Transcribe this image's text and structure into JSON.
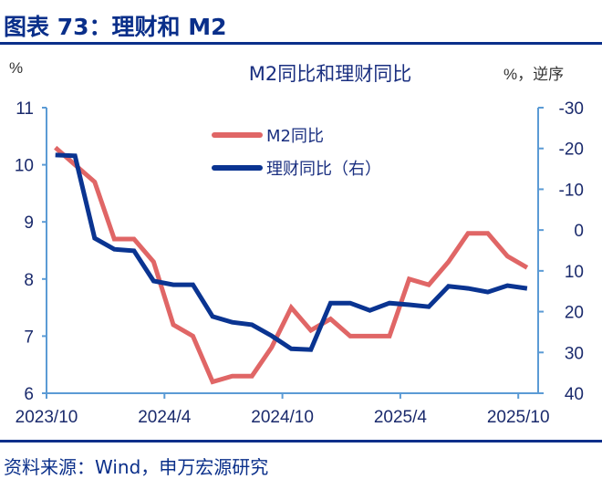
{
  "header": {
    "title": "图表 73：理财和 M2"
  },
  "footer": {
    "source": "资料来源：Wind，申万宏源研究"
  },
  "chart_data": {
    "type": "line",
    "title": "M2同比和理财同比",
    "left_unit": "%",
    "right_unit": "%，逆序",
    "x": [
      "2023/10",
      "2023/11",
      "2023/12",
      "2024/1",
      "2024/2",
      "2024/3",
      "2024/4",
      "2024/5",
      "2024/6",
      "2024/7",
      "2024/8",
      "2024/9",
      "2024/10",
      "2024/11",
      "2024/12",
      "2025/1",
      "2025/2",
      "2025/3",
      "2025/4",
      "2025/5",
      "2025/6",
      "2025/7",
      "2025/8",
      "2025/9",
      "2025/10"
    ],
    "x_tick_labels": [
      "2023/10",
      "2024/4",
      "2024/10",
      "2025/4",
      "2025/10"
    ],
    "y_left": {
      "range": [
        6,
        11
      ],
      "ticks": [
        "6",
        "7",
        "8",
        "9",
        "10",
        "11"
      ]
    },
    "y_right": {
      "range": [
        -30,
        40
      ],
      "reversed": true,
      "ticks": [
        "-30",
        "-20",
        "-10",
        "0",
        "10",
        "20",
        "30",
        "40"
      ]
    },
    "grid": false,
    "legend_position": "top-center",
    "series": [
      {
        "name": "M2同比",
        "axis": "left",
        "color": "#e06666",
        "values": [
          10.3,
          10.0,
          9.7,
          8.7,
          8.7,
          8.3,
          7.2,
          7.0,
          6.2,
          6.3,
          6.3,
          6.8,
          7.5,
          7.1,
          7.3,
          7.0,
          7.0,
          7.0,
          8.0,
          7.9,
          8.3,
          8.8,
          8.8,
          8.4,
          8.2
        ]
      },
      {
        "name": "理财同比（右）",
        "axis": "right",
        "color": "#0a3491",
        "values": [
          -18.4,
          -18.2,
          2.0,
          4.7,
          5.1,
          12.5,
          13.4,
          13.4,
          21.2,
          22.6,
          23.2,
          25.9,
          29.1,
          29.3,
          17.9,
          17.9,
          19.7,
          17.9,
          18.3,
          18.8,
          13.8,
          14.3,
          15.2,
          13.6,
          14.3
        ]
      }
    ],
    "axis_color": "#5b9bd5"
  }
}
